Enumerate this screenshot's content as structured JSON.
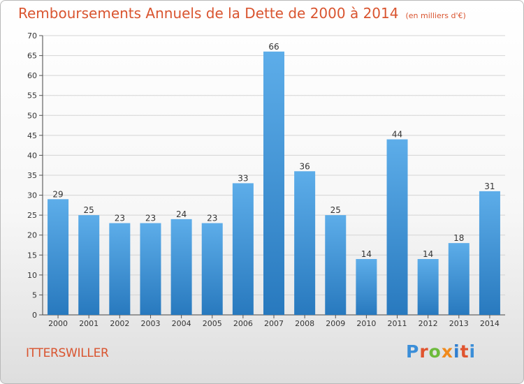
{
  "title": "Remboursements Annuels de la Dette de 2000 à 2014",
  "unit_note": "(en milliers d'€)",
  "commune": "ITTERSWILLER",
  "logo": {
    "text": "Proxiti",
    "letter_colors": [
      "#3b8ed8",
      "#e0542f",
      "#6dbb3c",
      "#f08a1c",
      "#2f7fd0",
      "#e0542f"
    ]
  },
  "colors": {
    "title": "#d9542f",
    "bar_top": "#5dade9",
    "bar_bottom": "#2879be",
    "grid": "#d4d4d4"
  },
  "chart_data": {
    "type": "bar",
    "categories": [
      "2000",
      "2001",
      "2002",
      "2003",
      "2004",
      "2005",
      "2006",
      "2007",
      "2008",
      "2009",
      "2010",
      "2011",
      "2012",
      "2013",
      "2014"
    ],
    "values": [
      29,
      25,
      23,
      23,
      24,
      23,
      33,
      66,
      36,
      25,
      14,
      44,
      14,
      18,
      31
    ],
    "data_labels": [
      "29",
      "25",
      "23",
      "23",
      "24",
      "23",
      "33",
      "66",
      "36",
      "25",
      "14",
      "44",
      "14",
      "18",
      "31"
    ],
    "yticks": [
      "0",
      "5",
      "10",
      "15",
      "20",
      "25",
      "30",
      "35",
      "40",
      "45",
      "50",
      "55",
      "60",
      "65",
      "70"
    ],
    "ylim": [
      0,
      70
    ],
    "grid": true,
    "legend": "none"
  }
}
